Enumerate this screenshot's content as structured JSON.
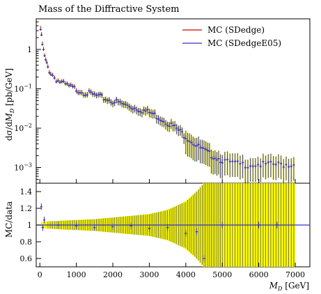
{
  "chart_data": {
    "type": "scatter",
    "title": "Mass of the Diffractive System",
    "xlabel": "M_D [GeV]",
    "ylabel_top": "dσ/dM_D [pb/GeV]",
    "ylabel_bottom": "MC/data",
    "x_ticks": [
      "0",
      "1000",
      "2000",
      "3000",
      "4000",
      "5000",
      "6000",
      "7000"
    ],
    "xlim": [
      -100,
      7400
    ],
    "top_ylim": [
      0.0004,
      6.0
    ],
    "top_yscale": "log",
    "top_y_ticks": [
      "1",
      "10^{-1}",
      "10^{-2}",
      "10^{-3}"
    ],
    "bottom_ylim": [
      0.5,
      1.5
    ],
    "bottom_y_ticks": [
      "0.6",
      "0.8",
      "1",
      "1.2",
      "1.4"
    ],
    "legend_position": "top-right",
    "series": [
      {
        "name": "MC (SDedge)",
        "color": "#cc0000",
        "x": [
          20,
          60,
          100,
          140,
          180,
          220,
          260,
          300,
          400,
          500,
          700,
          900,
          1100,
          1300,
          1500,
          1700,
          1900,
          2100,
          2300,
          2500,
          2700,
          2900,
          3100,
          3300,
          3500,
          3700,
          3900,
          4100,
          4300,
          4500,
          4700,
          4900,
          5100,
          5500,
          6000,
          6500,
          6900
        ],
        "y": [
          3.5,
          1.6,
          0.95,
          0.6,
          0.45,
          0.36,
          0.3,
          0.26,
          0.2,
          0.165,
          0.13,
          0.11,
          0.095,
          0.082,
          0.072,
          0.063,
          0.055,
          0.048,
          0.041,
          0.036,
          0.032,
          0.028,
          0.024,
          0.019,
          0.015,
          0.011,
          0.008,
          0.0055,
          0.0038,
          0.0028,
          0.0022,
          0.0018,
          0.0015,
          0.0012,
          0.0012,
          0.0012,
          0.0012
        ]
      },
      {
        "name": "MC (SDedgeE05)",
        "color": "#3333cc",
        "x": [
          20,
          60,
          100,
          140,
          180,
          220,
          260,
          300,
          400,
          500,
          700,
          900,
          1100,
          1300,
          1500,
          1700,
          1900,
          2100,
          2300,
          2500,
          2700,
          2900,
          3100,
          3300,
          3500,
          3700,
          3900,
          4100,
          4300,
          4500,
          4700,
          4900,
          5100,
          5500,
          6000,
          6500,
          6900
        ],
        "y": [
          3.2,
          1.5,
          0.9,
          0.58,
          0.44,
          0.35,
          0.29,
          0.25,
          0.195,
          0.16,
          0.125,
          0.105,
          0.09,
          0.078,
          0.068,
          0.06,
          0.052,
          0.046,
          0.04,
          0.035,
          0.031,
          0.027,
          0.023,
          0.018,
          0.014,
          0.0105,
          0.0075,
          0.0052,
          0.0036,
          0.0027,
          0.0021,
          0.0017,
          0.0014,
          0.0012,
          0.0012,
          0.0012,
          0.0012
        ]
      }
    ],
    "ratio_band": {
      "color": "#ffff00",
      "x": [
        100,
        500,
        1000,
        1500,
        2000,
        2500,
        3000,
        3500,
        4000,
        4300,
        4500,
        5000,
        5500,
        6000,
        6500,
        7000
      ],
      "half_width": [
        0.04,
        0.05,
        0.06,
        0.07,
        0.09,
        0.11,
        0.13,
        0.18,
        0.28,
        0.4,
        0.5,
        0.6,
        0.6,
        0.6,
        0.6,
        0.6
      ]
    },
    "ratio_points": {
      "x": [
        40,
        80,
        120,
        500,
        1000,
        1500,
        2000,
        2500,
        3000,
        3500,
        4000,
        4300,
        4500,
        5000,
        6000,
        6500
      ],
      "y": [
        1.22,
        0.97,
        1.06,
        1.0,
        0.99,
        0.97,
        0.98,
        0.99,
        0.96,
        0.97,
        0.9,
        0.92,
        0.6,
        1.0,
        1.0,
        1.0
      ]
    }
  }
}
